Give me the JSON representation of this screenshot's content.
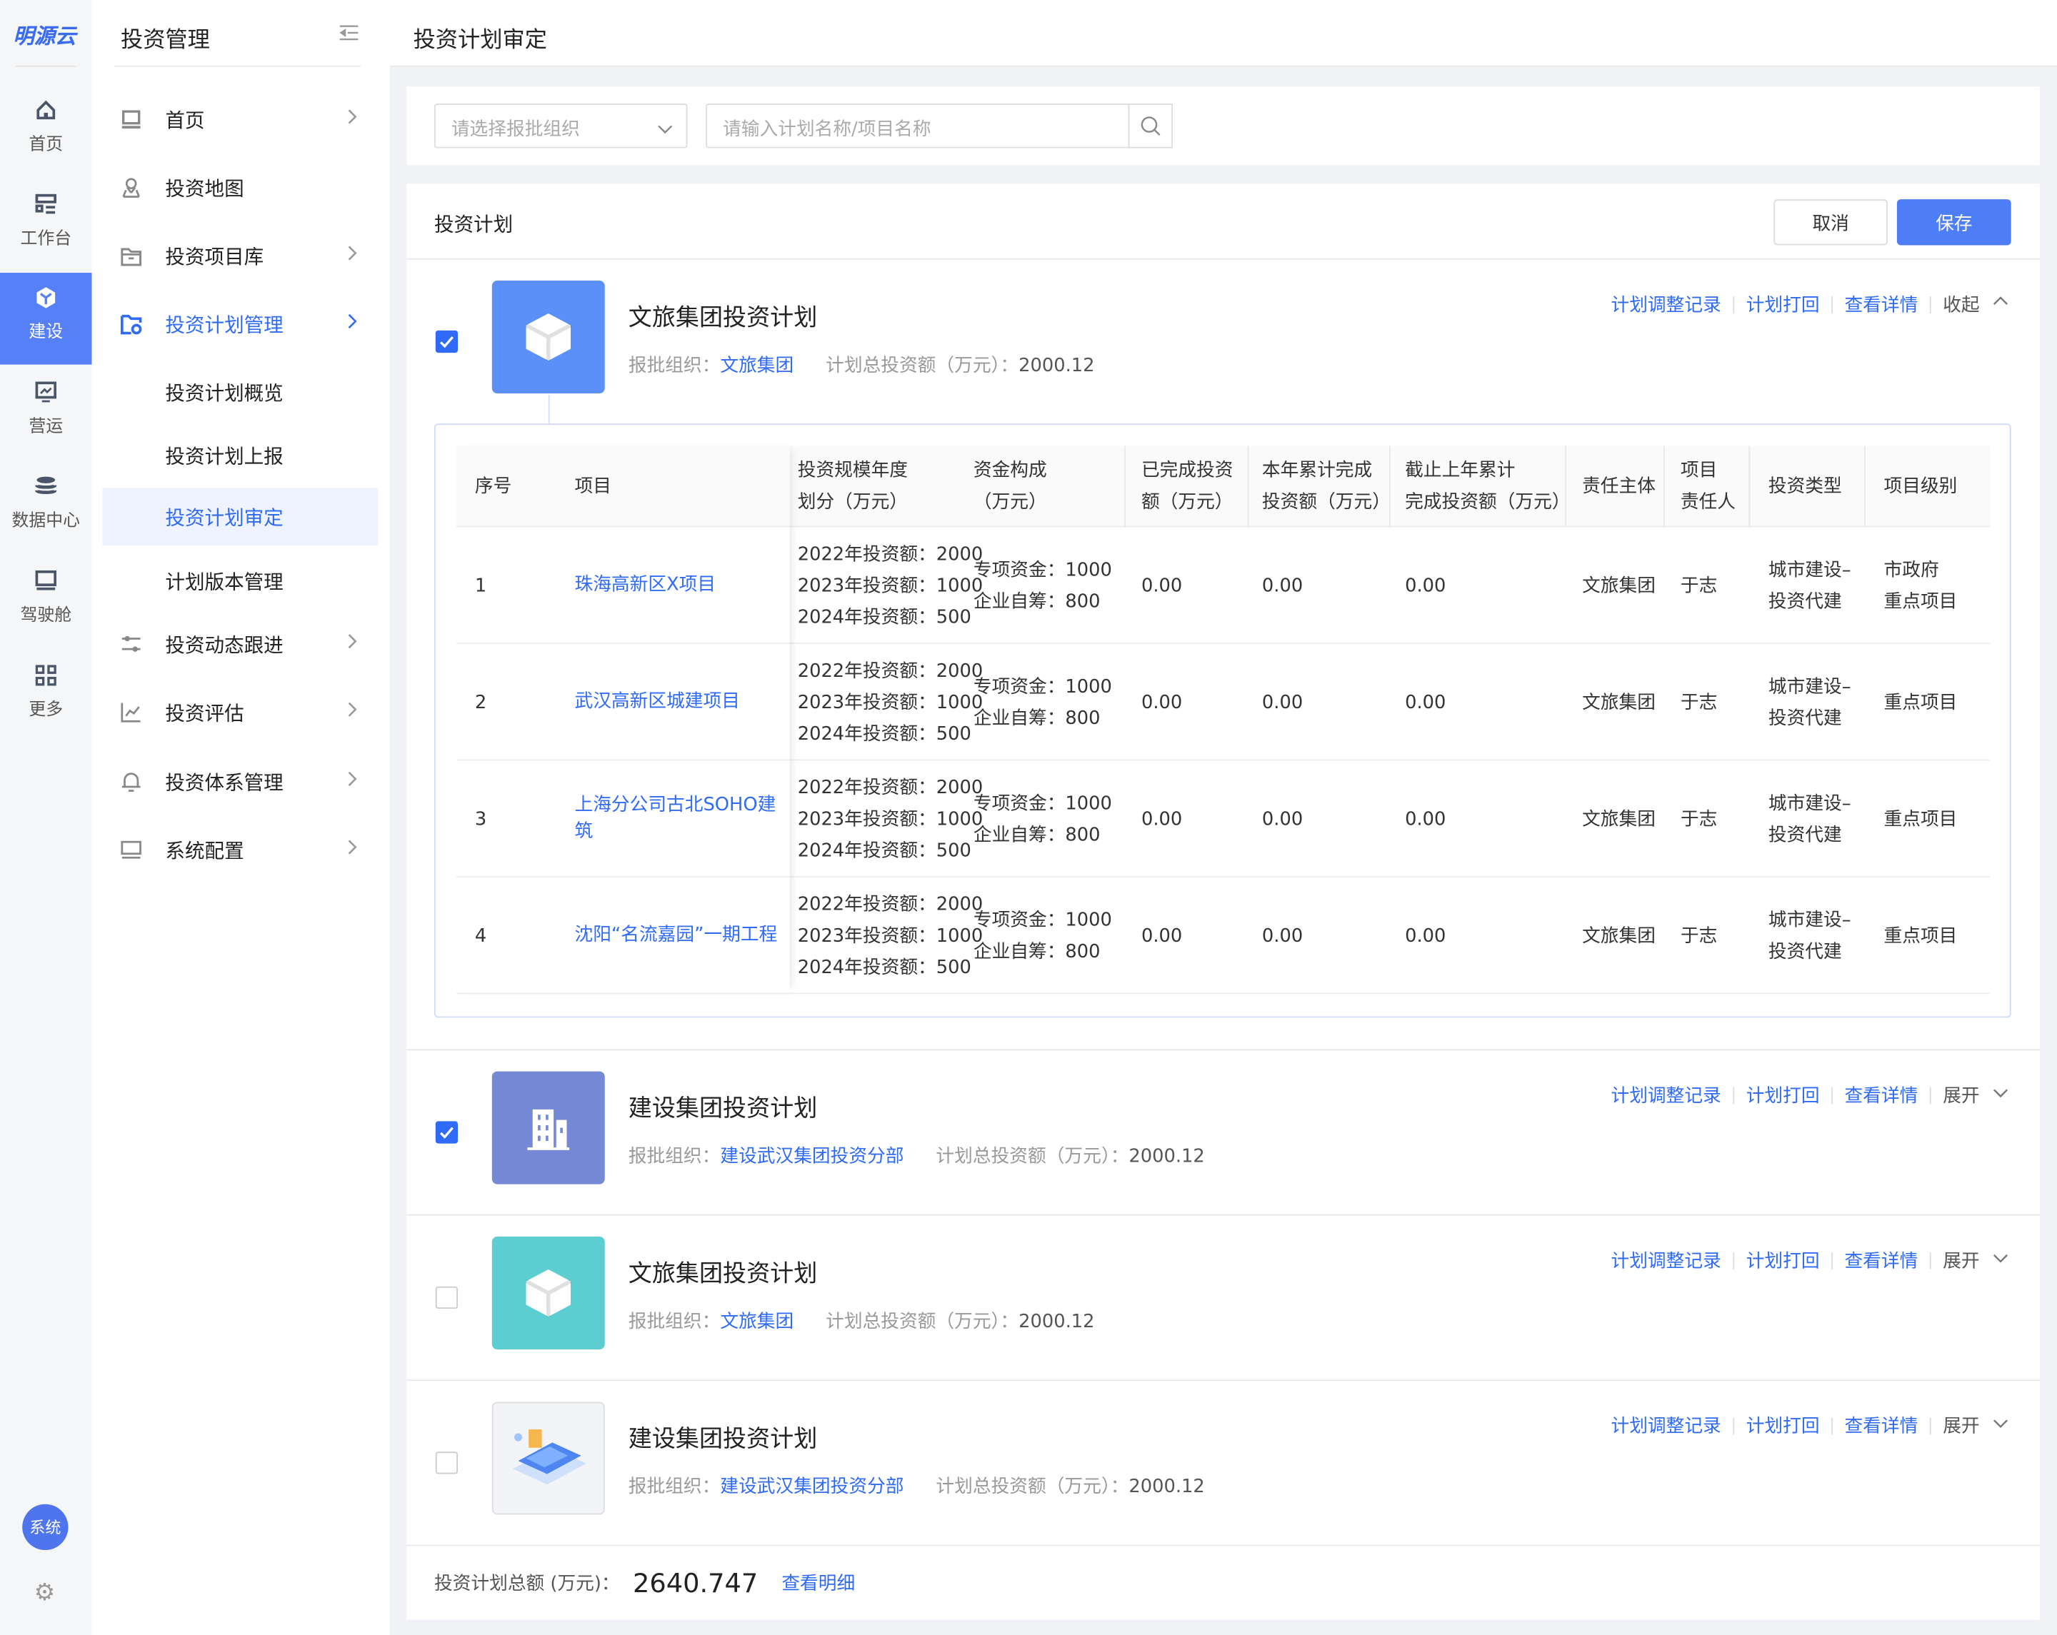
{
  "brand": "明源云",
  "rail": [
    {
      "label": "首页",
      "icon": "home-icon"
    },
    {
      "label": "工作台",
      "icon": "workbench-icon"
    },
    {
      "label": "建设",
      "icon": "cube-icon",
      "active": true
    },
    {
      "label": "营运",
      "icon": "monitor-chart-icon"
    },
    {
      "label": "数据中心",
      "icon": "database-icon"
    },
    {
      "label": "驾驶舱",
      "icon": "cockpit-icon"
    },
    {
      "label": "更多",
      "icon": "grid-icon"
    }
  ],
  "rail_bottom": {
    "avatar": "系统"
  },
  "sidebar": {
    "title": "投资管理",
    "items": [
      {
        "label": "首页",
        "icon": "laptop-icon",
        "chevron": true
      },
      {
        "label": "投资地图",
        "icon": "map-pin-icon"
      },
      {
        "label": "投资项目库",
        "icon": "folder-icon",
        "chevron": true
      },
      {
        "label": "投资计划管理",
        "icon": "folder-gear-icon",
        "chevron": true,
        "active": true
      },
      {
        "label": "投资计划概览",
        "sub": true
      },
      {
        "label": "投资计划上报",
        "sub": true
      },
      {
        "label": "投资计划审定",
        "sub": true,
        "selected": true
      },
      {
        "label": "计划版本管理",
        "sub": true
      },
      {
        "label": "投资动态跟进",
        "icon": "sliders-icon",
        "chevron": true
      },
      {
        "label": "投资评估",
        "icon": "line-chart-icon",
        "chevron": true
      },
      {
        "label": "投资体系管理",
        "icon": "bell-icon",
        "chevron": true
      },
      {
        "label": "系统配置",
        "icon": "monitor-icon",
        "chevron": true
      }
    ]
  },
  "header": {
    "title": "投资计划审定"
  },
  "filter": {
    "org_placeholder": "请选择报批组织",
    "search_placeholder": "请输入计划名称/项目名称"
  },
  "section": {
    "title": "投资计划",
    "cancel": "取消",
    "save": "保存"
  },
  "colors": {
    "primary": "#2f6bf6",
    "rail_active": "#5580f7"
  },
  "actions": {
    "adjust": "计划调整记录",
    "reject": "计划打回",
    "detail": "查看详情",
    "collapse": "收起",
    "expand": "展开"
  },
  "plans": [
    {
      "title": "文旅集团投资计划",
      "org_label": "报批组织：",
      "org": "文旅集团",
      "total_label": "计划总投资额（万元）：",
      "total": "2000.12",
      "checked": true,
      "expanded": true,
      "icon_color": "#5b8ff9"
    },
    {
      "title": "建设集团投资计划",
      "org_label": "报批组织：",
      "org": "建设武汉集团投资分部",
      "total_label": "计划总投资额（万元）：",
      "total": "2000.12",
      "checked": true,
      "expanded": false,
      "icon_color": "#7689d6"
    },
    {
      "title": "文旅集团投资计划",
      "org_label": "报批组织：",
      "org": "文旅集团",
      "total_label": "计划总投资额（万元）：",
      "total": "2000.12",
      "checked": false,
      "expanded": false,
      "icon_color": "#5ccdd0"
    },
    {
      "title": "建设集团投资计划",
      "org_label": "报批组织：",
      "org": "建设武汉集团投资分部",
      "total_label": "计划总投资额（万元）：",
      "total": "2000.12",
      "checked": false,
      "expanded": false,
      "icon_color": "#f2f4f7"
    }
  ],
  "table": {
    "headers": [
      "序号",
      "项目",
      "投资规模年度\n划分（万元）",
      "资金构成\n（万元）",
      "已完成投资\n额（万元）",
      "本年累计完成\n投资额（万元）",
      "截止上年累计\n完成投资额（万元）",
      "责任主体",
      "项目\n责任人",
      "投资类型",
      "项目级别"
    ],
    "rows": [
      {
        "no": "1",
        "project": "珠海高新区X项目",
        "scale": [
          "2022年投资额：2000",
          "2023年投资额：1000",
          "2024年投资额：500"
        ],
        "funds": [
          "专项资金：1000",
          "企业自筹：800"
        ],
        "done": "0.00",
        "year": "0.00",
        "prev": "0.00",
        "owner": "文旅集团",
        "person": "于志",
        "type": "城市建设–\n投资代建",
        "level": "市政府\n重点项目"
      },
      {
        "no": "2",
        "project": "武汉高新区城建项目",
        "scale": [
          "2022年投资额：2000",
          "2023年投资额：1000",
          "2024年投资额：500"
        ],
        "funds": [
          "专项资金：1000",
          "企业自筹：800"
        ],
        "done": "0.00",
        "year": "0.00",
        "prev": "0.00",
        "owner": "文旅集团",
        "person": "于志",
        "type": "城市建设–\n投资代建",
        "level": "重点项目"
      },
      {
        "no": "3",
        "project": "上海分公司古北SOHO建筑",
        "scale": [
          "2022年投资额：2000",
          "2023年投资额：1000",
          "2024年投资额：500"
        ],
        "funds": [
          "专项资金：1000",
          "企业自筹：800"
        ],
        "done": "0.00",
        "year": "0.00",
        "prev": "0.00",
        "owner": "文旅集团",
        "person": "于志",
        "type": "城市建设–\n投资代建",
        "level": "重点项目"
      },
      {
        "no": "4",
        "project": "沈阳“名流嘉园”一期工程",
        "scale": [
          "2022年投资额：2000",
          "2023年投资额：1000",
          "2024年投资额：500"
        ],
        "funds": [
          "专项资金：1000",
          "企业自筹：800"
        ],
        "done": "0.00",
        "year": "0.00",
        "prev": "0.00",
        "owner": "文旅集团",
        "person": "于志",
        "type": "城市建设–\n投资代建",
        "level": "重点项目"
      }
    ]
  },
  "footer": {
    "label": "投资计划总额 (万元)：",
    "total": "2640.747",
    "link": "查看明细"
  }
}
